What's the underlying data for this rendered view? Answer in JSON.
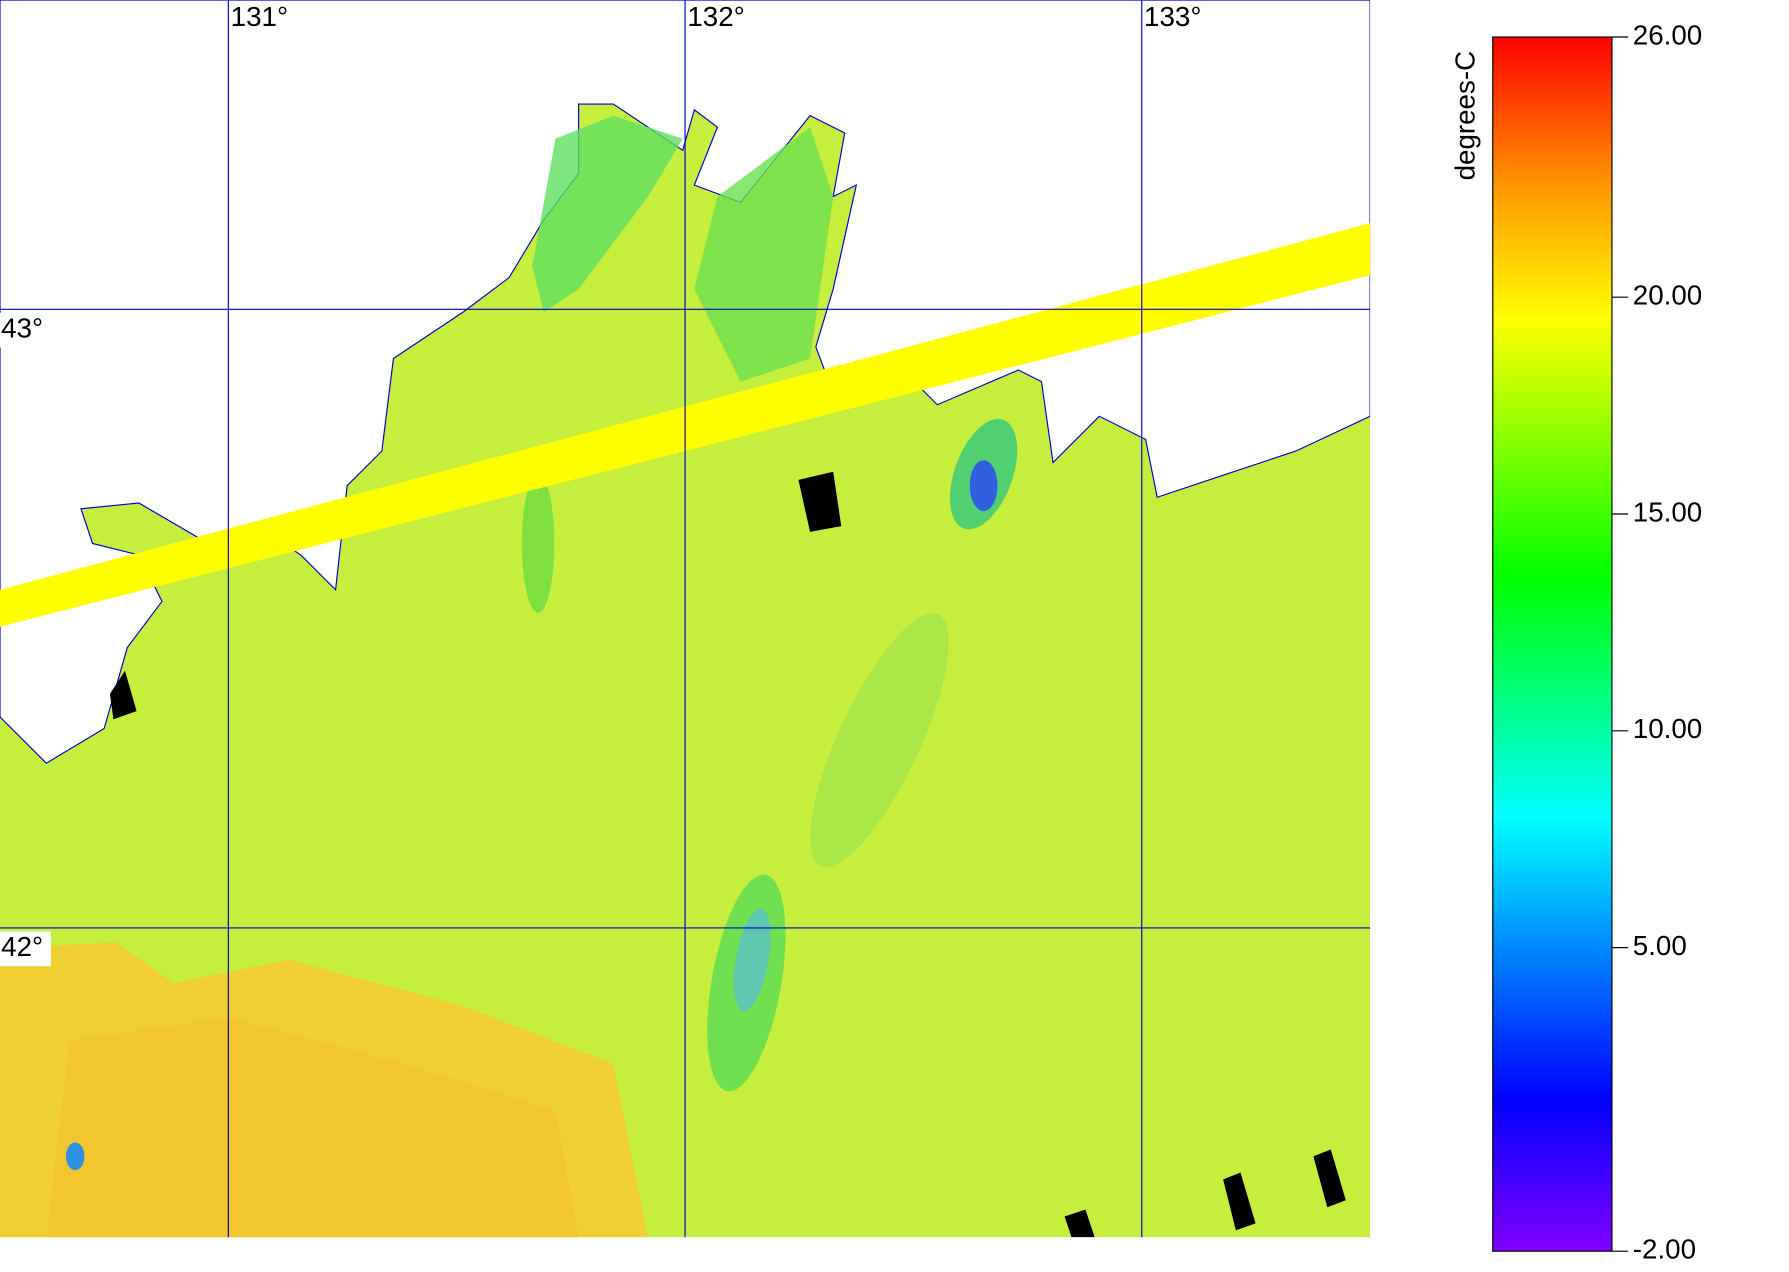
{
  "map": {
    "xlim": [
      130.5,
      133.5
    ],
    "ylim": [
      41.5,
      43.5
    ],
    "lon_ticks": [
      {
        "value": 131,
        "label": "131°"
      },
      {
        "value": 132,
        "label": "132°"
      },
      {
        "value": 133,
        "label": "133°"
      }
    ],
    "lat_ticks": [
      {
        "value": 43,
        "label": "43°"
      },
      {
        "value": 42,
        "label": "42°"
      }
    ],
    "grid_color": "#0000cc",
    "colorbar": {
      "label": "degrees-C",
      "lim": [
        -2,
        26
      ],
      "ticks": [
        {
          "value": 26,
          "label": "26.00"
        },
        {
          "value": 20,
          "label": "20.00"
        },
        {
          "value": 15,
          "label": "15.00"
        },
        {
          "value": 10,
          "label": "10.00"
        },
        {
          "value": 5,
          "label": "5.00"
        },
        {
          "value": -2,
          "label": "-2.00"
        }
      ],
      "stops": [
        {
          "value": -2,
          "color": "#8000ff"
        },
        {
          "value": 1.5,
          "color": "#0000ff"
        },
        {
          "value": 8,
          "color": "#00ffff"
        },
        {
          "value": 13.5,
          "color": "#00ff00"
        },
        {
          "value": 19.5,
          "color": "#ffff00"
        },
        {
          "value": 22.5,
          "color": "#ff9900"
        },
        {
          "value": 26,
          "color": "#ff0000"
        }
      ]
    }
  }
}
